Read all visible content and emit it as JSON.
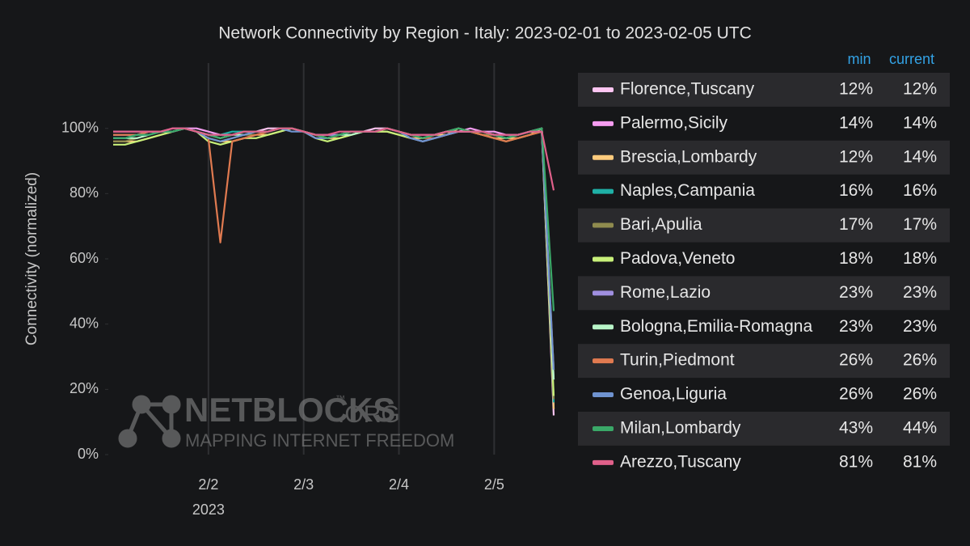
{
  "chart_data": {
    "type": "line",
    "title": "Network Connectivity by Region - Italy: 2023-02-01 to 2023-02-05 UTC",
    "y_label": "Connectivity (normalized)",
    "x_sublabel": "2023",
    "categories": [
      null,
      null,
      null,
      null,
      null,
      null,
      null,
      null,
      "2/2",
      null,
      null,
      null,
      null,
      null,
      null,
      null,
      "2/3",
      null,
      null,
      null,
      null,
      null,
      null,
      null,
      "2/4",
      null,
      null,
      null,
      null,
      null,
      null,
      null,
      "2/5",
      null,
      null,
      null,
      null,
      null
    ],
    "ylim": [
      0,
      120
    ],
    "yticks": [
      {
        "value": 0,
        "label": "0%"
      },
      {
        "value": 20,
        "label": "20%"
      },
      {
        "value": 40,
        "label": "40%"
      },
      {
        "value": 60,
        "label": "60%"
      },
      {
        "value": 80,
        "label": "80%"
      },
      {
        "value": 100,
        "label": "100%"
      }
    ],
    "grid": "x",
    "legend_columns": [
      "min",
      "current"
    ],
    "series": [
      {
        "name": "Florence,Tuscany",
        "color": "#ffc6f2",
        "min": "12%",
        "current": "12%",
        "values": [
          98,
          98,
          98,
          99,
          99,
          99,
          100,
          99,
          98,
          97,
          98,
          99,
          99,
          100,
          100,
          100,
          99,
          98,
          97,
          98,
          99,
          99,
          100,
          100,
          99,
          98,
          97,
          98,
          99,
          99,
          99,
          99,
          98,
          97,
          98,
          99,
          99,
          12
        ]
      },
      {
        "name": "Palermo,Sicily",
        "color": "#f59cf0",
        "min": "14%",
        "current": "14%",
        "values": [
          99,
          99,
          99,
          99,
          99,
          100,
          100,
          100,
          99,
          98,
          98,
          99,
          99,
          99,
          100,
          100,
          99,
          98,
          98,
          98,
          99,
          99,
          99,
          100,
          99,
          98,
          98,
          98,
          99,
          99,
          100,
          99,
          99,
          98,
          98,
          99,
          100,
          14
        ]
      },
      {
        "name": "Brescia,Lombardy",
        "color": "#ffcb7d",
        "min": "12%",
        "current": "14%",
        "values": [
          96,
          96,
          96,
          97,
          98,
          99,
          100,
          99,
          97,
          96,
          96,
          97,
          98,
          98,
          99,
          100,
          99,
          98,
          97,
          97,
          98,
          99,
          99,
          99,
          98,
          97,
          97,
          98,
          98,
          100,
          99,
          98,
          97,
          97,
          97,
          98,
          100,
          14
        ]
      },
      {
        "name": "Naples,Campania",
        "color": "#1fb0a6",
        "min": "16%",
        "current": "16%",
        "values": [
          97,
          97,
          98,
          98,
          99,
          99,
          100,
          99,
          98,
          98,
          99,
          99,
          99,
          99,
          100,
          100,
          99,
          98,
          97,
          98,
          99,
          99,
          99,
          100,
          99,
          98,
          97,
          98,
          99,
          99,
          99,
          99,
          98,
          97,
          98,
          99,
          100,
          16
        ]
      },
      {
        "name": "Bari,Apulia",
        "color": "#8f8b4e",
        "min": "17%",
        "current": "17%",
        "values": [
          96,
          96,
          97,
          98,
          99,
          99,
          100,
          99,
          97,
          96,
          97,
          98,
          98,
          99,
          100,
          100,
          99,
          97,
          97,
          98,
          99,
          99,
          99,
          100,
          99,
          98,
          97,
          98,
          99,
          99,
          99,
          98,
          98,
          97,
          98,
          99,
          100,
          17
        ]
      },
      {
        "name": "Padova,Veneto",
        "color": "#c8f07a",
        "min": "18%",
        "current": "18%",
        "values": [
          95,
          95,
          96,
          97,
          98,
          99,
          100,
          99,
          96,
          95,
          96,
          97,
          97,
          98,
          99,
          100,
          99,
          97,
          96,
          97,
          98,
          99,
          99,
          99,
          98,
          97,
          96,
          97,
          98,
          99,
          99,
          98,
          97,
          96,
          97,
          98,
          99,
          18
        ]
      },
      {
        "name": "Rome,Lazio",
        "color": "#a08fe0",
        "min": "23%",
        "current": "23%",
        "values": [
          98,
          98,
          98,
          99,
          99,
          99,
          100,
          99,
          98,
          97,
          98,
          99,
          99,
          99,
          100,
          100,
          99,
          98,
          98,
          98,
          99,
          99,
          99,
          100,
          99,
          97,
          96,
          97,
          98,
          99,
          99,
          99,
          98,
          98,
          98,
          99,
          100,
          23
        ]
      },
      {
        "name": "Bologna,Emilia-Romagna",
        "color": "#b8f5c8",
        "min": "23%",
        "current": "23%",
        "values": [
          97,
          97,
          97,
          98,
          99,
          99,
          100,
          99,
          98,
          97,
          98,
          98,
          99,
          99,
          100,
          100,
          99,
          98,
          97,
          98,
          98,
          99,
          99,
          100,
          99,
          98,
          97,
          98,
          99,
          100,
          99,
          99,
          98,
          97,
          98,
          99,
          100,
          23
        ]
      },
      {
        "name": "Turin,Piedmont",
        "color": "#e07a50",
        "min": "26%",
        "current": "26%",
        "values": [
          98,
          98,
          98,
          99,
          99,
          99,
          100,
          99,
          97,
          65,
          96,
          97,
          98,
          99,
          100,
          100,
          99,
          98,
          97,
          98,
          99,
          99,
          99,
          100,
          99,
          98,
          97,
          97,
          98,
          99,
          99,
          98,
          97,
          96,
          97,
          98,
          99,
          26
        ]
      },
      {
        "name": "Genoa,Liguria",
        "color": "#6f93d0",
        "min": "26%",
        "current": "26%",
        "values": [
          97,
          97,
          98,
          98,
          99,
          99,
          100,
          99,
          97,
          96,
          97,
          98,
          99,
          99,
          100,
          99,
          99,
          97,
          97,
          98,
          99,
          99,
          99,
          100,
          99,
          97,
          96,
          97,
          98,
          99,
          99,
          99,
          98,
          97,
          98,
          99,
          99,
          26
        ]
      },
      {
        "name": "Milan,Lombardy",
        "color": "#3aa868",
        "min": "43%",
        "current": "44%",
        "values": [
          97,
          97,
          98,
          98,
          99,
          99,
          100,
          99,
          98,
          97,
          98,
          99,
          99,
          99,
          100,
          100,
          99,
          98,
          97,
          98,
          99,
          99,
          99,
          100,
          99,
          98,
          97,
          98,
          99,
          100,
          99,
          99,
          98,
          97,
          98,
          99,
          100,
          44
        ]
      },
      {
        "name": "Arezzo,Tuscany",
        "color": "#e0608a",
        "min": "81%",
        "current": "81%",
        "values": [
          99,
          99,
          99,
          99,
          99,
          100,
          100,
          99,
          98,
          98,
          98,
          99,
          99,
          99,
          100,
          100,
          99,
          98,
          98,
          99,
          99,
          99,
          99,
          100,
          99,
          98,
          98,
          98,
          99,
          99,
          99,
          99,
          98,
          98,
          98,
          99,
          99,
          81
        ]
      }
    ]
  },
  "watermark": {
    "brand": "NETBLOCKS",
    "tm": "™",
    "tld": ".ORG",
    "tagline": "MAPPING INTERNET FREEDOM"
  }
}
